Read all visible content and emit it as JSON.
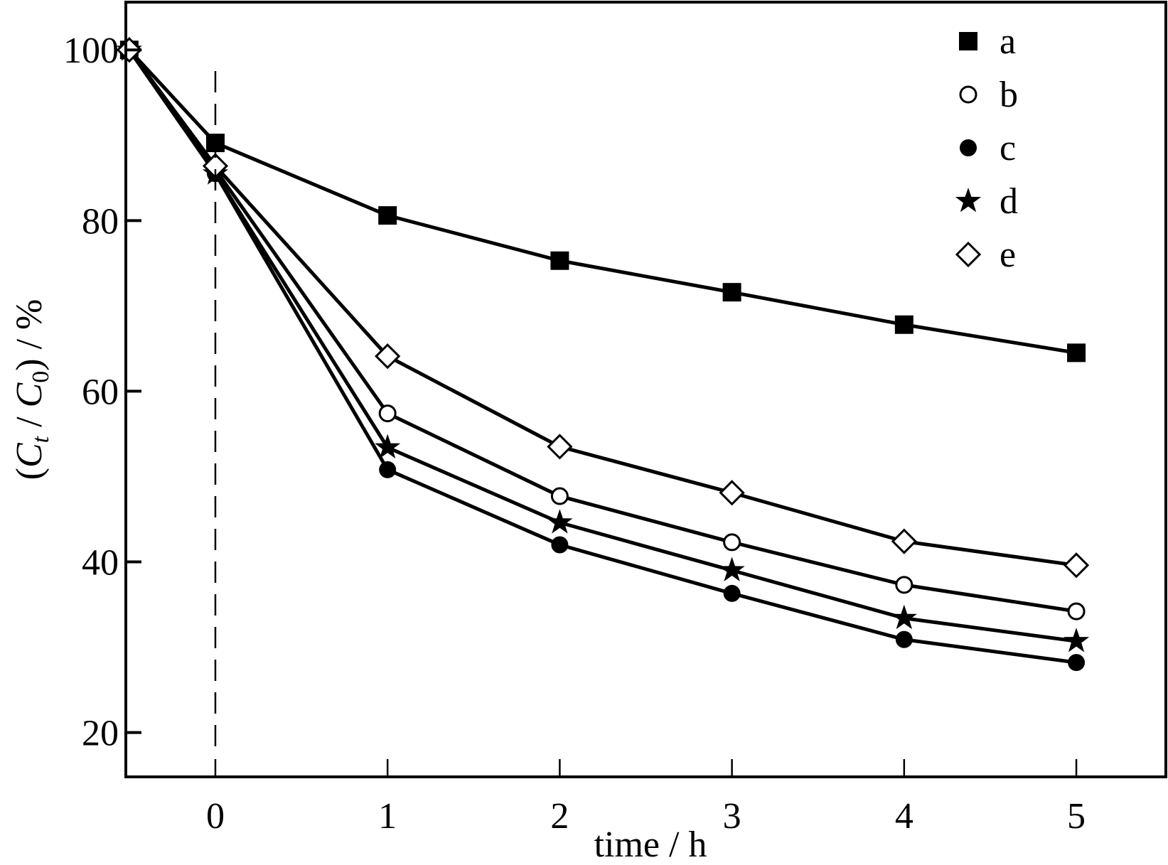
{
  "chart_data": {
    "type": "line",
    "title": "",
    "xlabel": "time / h",
    "ylabel": {
      "open": "(",
      "c1": "C",
      "c1_sub": "t",
      "slash": " / ",
      "c2": "C",
      "c2_sub": "0",
      "close": ")",
      "unit": " / %"
    },
    "xlim": [
      -0.52,
      5.52
    ],
    "ylim": [
      14.8,
      105.6
    ],
    "xticks": [
      "0",
      "1",
      "2",
      "3",
      "4",
      "5"
    ],
    "yticks": [
      "20",
      "40",
      "60",
      "80",
      "100"
    ],
    "grid": false,
    "legend_position": "top-right",
    "vertical_reference_line_x": 0,
    "series": [
      {
        "name": "a",
        "marker": "filled-square",
        "x": [
          -0.5,
          0,
          1,
          2,
          3,
          4,
          5
        ],
        "y": [
          100,
          89.1,
          80.6,
          75.3,
          71.6,
          67.8,
          64.5
        ]
      },
      {
        "name": "b",
        "marker": "open-circle",
        "x": [
          -0.5,
          0,
          1,
          2,
          3,
          4,
          5
        ],
        "y": [
          100,
          86.0,
          57.4,
          47.7,
          42.3,
          37.3,
          34.2
        ]
      },
      {
        "name": "c",
        "marker": "filled-circle",
        "x": [
          -0.5,
          0,
          1,
          2,
          3,
          4,
          5
        ],
        "y": [
          100,
          85.5,
          50.8,
          42.0,
          36.3,
          30.9,
          28.2
        ]
      },
      {
        "name": "d",
        "marker": "filled-star",
        "x": [
          -0.5,
          0,
          1,
          2,
          3,
          4,
          5
        ],
        "y": [
          100,
          85.5,
          53.4,
          44.6,
          39.0,
          33.4,
          30.7
        ]
      },
      {
        "name": "e",
        "marker": "open-diamond",
        "x": [
          -0.5,
          0,
          1,
          2,
          3,
          4,
          5
        ],
        "y": [
          100,
          86.4,
          64.1,
          53.5,
          48.1,
          42.4,
          39.6
        ]
      }
    ]
  }
}
